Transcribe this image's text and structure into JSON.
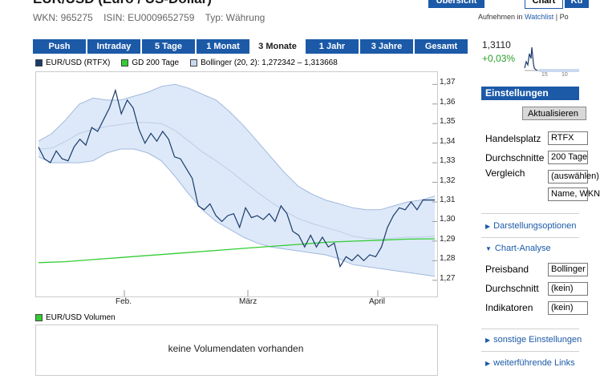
{
  "header": {
    "title": "EUR/USD (Euro / US-Dollar)",
    "wkn": "WKN: 965275",
    "isin": "ISIN: EU0009652759",
    "typ": "Typ: Währung"
  },
  "topnav": {
    "uebersicht": "Übersicht",
    "chart": "Chart",
    "more": "Ku"
  },
  "watchlist": {
    "prefix": "Aufnehmen in",
    "link": "Watchlist",
    "suffix": "| Po"
  },
  "tabs": [
    {
      "label": "Push",
      "active": false
    },
    {
      "label": "Intraday",
      "active": false
    },
    {
      "label": "5 Tage",
      "active": false
    },
    {
      "label": "1 Monat",
      "active": false
    },
    {
      "label": "3 Monate",
      "active": true
    },
    {
      "label": "1 Jahr",
      "active": false
    },
    {
      "label": "3 Jahre",
      "active": false
    },
    {
      "label": "Gesamt",
      "active": false
    }
  ],
  "legend": {
    "series": "EUR/USD (RTFX)",
    "gd": "GD 200 Tage",
    "bollinger": "Bollinger (20, 2): 1,272342 – 1,313668"
  },
  "colors": {
    "series": "#1a3a6b",
    "gd": "#33cc33",
    "band_fill": "#dde9f8",
    "band_line": "#9fb8de",
    "accent": "#1c5aa8"
  },
  "chart_data": {
    "type": "line",
    "x_ticks": [
      "Feb.",
      "März",
      "April"
    ],
    "y_ticks": [
      "1,37",
      "1,36",
      "1,35",
      "1,34",
      "1,33",
      "1,32",
      "1,31",
      "1,30",
      "1,29",
      "1,28",
      "1,27"
    ],
    "ylim": [
      1.265,
      1.373
    ],
    "grid": false,
    "series": [
      {
        "name": "EUR/USD (RTFX)",
        "values": [
          1.338,
          1.332,
          1.33,
          1.336,
          1.332,
          1.331,
          1.338,
          1.342,
          1.339,
          1.348,
          1.346,
          1.352,
          1.358,
          1.367,
          1.355,
          1.362,
          1.358,
          1.347,
          1.34,
          1.345,
          1.341,
          1.346,
          1.342,
          1.333,
          1.332,
          1.327,
          1.322,
          1.308,
          1.306,
          1.309,
          1.303,
          1.3,
          1.303,
          1.304,
          1.297,
          1.307,
          1.302,
          1.303,
          1.301,
          1.304,
          1.3,
          1.308,
          1.304,
          1.295,
          1.293,
          1.287,
          1.293,
          1.287,
          1.292,
          1.287,
          1.289,
          1.277,
          1.282,
          1.28,
          1.283,
          1.28,
          1.283,
          1.282,
          1.287,
          1.297,
          1.303,
          1.307,
          1.306,
          1.31,
          1.306,
          1.311,
          1.311,
          1.311
        ]
      },
      {
        "name": "GD 200 Tage",
        "values": [
          1.279,
          1.2795,
          1.2805,
          1.2815,
          1.2825,
          1.2835,
          1.2845,
          1.2855,
          1.2865,
          1.2875,
          1.2885,
          1.2895,
          1.29,
          1.2905,
          1.291,
          1.2912
        ]
      },
      {
        "name": "Bollinger (20, 2)",
        "upper": [
          1.341,
          1.345,
          1.352,
          1.36,
          1.363,
          1.362,
          1.362,
          1.364,
          1.366,
          1.369,
          1.37,
          1.368,
          1.365,
          1.362,
          1.356,
          1.349,
          1.341,
          1.333,
          1.325,
          1.318,
          1.314,
          1.311,
          1.309,
          1.307,
          1.306,
          1.306,
          1.308,
          1.31,
          1.311,
          1.313
        ],
        "lower": [
          1.333,
          1.33,
          1.33,
          1.33,
          1.331,
          1.335,
          1.337,
          1.337,
          1.335,
          1.331,
          1.323,
          1.314,
          1.306,
          1.3,
          1.296,
          1.292,
          1.289,
          1.287,
          1.286,
          1.285,
          1.284,
          1.283,
          1.281,
          1.278,
          1.277,
          1.276,
          1.275,
          1.274,
          1.273,
          1.272
        ]
      }
    ]
  },
  "volume": {
    "label": "EUR/USD Volumen",
    "message": "keine Volumendaten vorhanden"
  },
  "sidebar": {
    "price": "1,3110",
    "change": "+0,03%",
    "mini_ticks": [
      "15",
      "10"
    ],
    "settings_title": "Einstellungen",
    "refresh_button": "Aktualisieren",
    "handelsplatz_label": "Handelsplatz",
    "handelsplatz_value": "RTFX",
    "durchschnitte_label": "Durchschnitte",
    "durchschnitte_value": "200 Tage",
    "vergleich_label": "Vergleich",
    "vergleich_value1": "(auswählen)",
    "vergleich_value2": "Name, WKN",
    "darstellung": "Darstellungsoptionen",
    "chartanalyse": "Chart-Analyse",
    "preisband_label": "Preisband",
    "preisband_value": "Bollinger",
    "durchschnitt_label": "Durchschnitt",
    "durchschnitt_value": "(kein)",
    "indikatoren_label": "Indikatoren",
    "indikatoren_value": "(kein)",
    "sonstige": "sonstige Einstellungen",
    "weiterfuehrende": "weiterführende Links"
  }
}
